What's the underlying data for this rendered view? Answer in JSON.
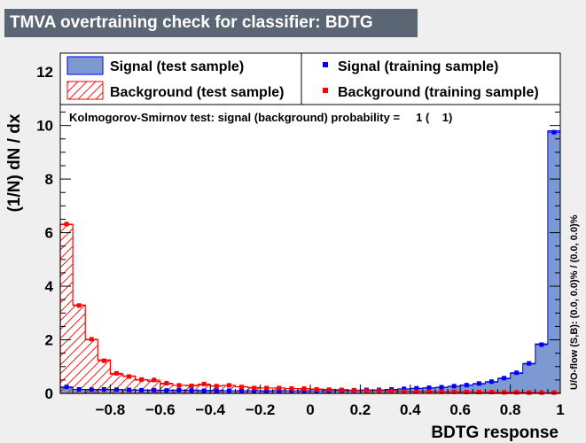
{
  "title": "TMVA overtraining check for classifier: BDTG",
  "colors": {
    "signal_fill": "#7d99d1",
    "signal_line": "#0000ee",
    "background_line": "#ff0000",
    "title_bg": "#5b6675"
  },
  "chart_data": {
    "type": "histogram",
    "xlabel": "BDTG response",
    "ylabel": "(1/N) dN / dx",
    "xlim": [
      -1,
      1
    ],
    "ylim": [
      0,
      12.7
    ],
    "x_ticks": [
      "−0.8",
      "−0.6",
      "−0.4",
      "−0.2",
      "0",
      "0.2",
      "0.4",
      "0.6",
      "0.8",
      "1"
    ],
    "x_tick_values": [
      -0.8,
      -0.6,
      -0.4,
      -0.2,
      0,
      0.2,
      0.4,
      0.6,
      0.8,
      1
    ],
    "y_ticks": [
      "0",
      "2",
      "4",
      "6",
      "8",
      "10",
      "12"
    ],
    "y_tick_values": [
      0,
      2,
      4,
      6,
      8,
      10,
      12
    ],
    "bins": 40,
    "legend": [
      {
        "label": "Signal (test sample)",
        "style": "fill"
      },
      {
        "label": "Signal (training sample)",
        "style": "marker"
      },
      {
        "label": "Background (test sample)",
        "style": "hatch"
      },
      {
        "label": "Background (training sample)",
        "style": "marker"
      }
    ],
    "ks_text": "Kolmogorov-Smirnov test: signal (background) probability =     1 (    1)",
    "uo_text": "U/O-flow (S,B): (0.0, 0.0)% / (0.0, 0.0)%",
    "series": [
      {
        "name": "Signal (test sample)",
        "values": [
          0.22,
          0.15,
          0.15,
          0.14,
          0.15,
          0.13,
          0.13,
          0.12,
          0.12,
          0.12,
          0.11,
          0.11,
          0.11,
          0.1,
          0.1,
          0.1,
          0.1,
          0.1,
          0.1,
          0.1,
          0.1,
          0.1,
          0.1,
          0.1,
          0.12,
          0.12,
          0.14,
          0.16,
          0.18,
          0.2,
          0.22,
          0.26,
          0.3,
          0.35,
          0.42,
          0.55,
          0.75,
          1.1,
          1.85,
          9.8
        ]
      },
      {
        "name": "Signal (training sample)",
        "values": [
          0.24,
          0.15,
          0.14,
          0.15,
          0.14,
          0.13,
          0.12,
          0.12,
          0.11,
          0.12,
          0.11,
          0.1,
          0.1,
          0.1,
          0.1,
          0.1,
          0.09,
          0.1,
          0.1,
          0.1,
          0.1,
          0.1,
          0.11,
          0.11,
          0.13,
          0.13,
          0.15,
          0.17,
          0.19,
          0.21,
          0.23,
          0.27,
          0.31,
          0.37,
          0.44,
          0.57,
          0.77,
          1.12,
          1.82,
          9.75
        ]
      },
      {
        "name": "Background (test sample)",
        "values": [
          6.3,
          3.3,
          2.0,
          1.25,
          0.72,
          0.65,
          0.5,
          0.45,
          0.35,
          0.3,
          0.3,
          0.32,
          0.28,
          0.3,
          0.25,
          0.22,
          0.2,
          0.2,
          0.18,
          0.17,
          0.16,
          0.15,
          0.14,
          0.12,
          0.1,
          0.1,
          0.1,
          0.08,
          0.08,
          0.07,
          0.06,
          0.06,
          0.06,
          0.05,
          0.05,
          0.04,
          0.04,
          0.04,
          0.03,
          0.03
        ]
      },
      {
        "name": "Background (training sample)",
        "values": [
          6.32,
          3.28,
          2.02,
          1.22,
          0.75,
          0.63,
          0.52,
          0.5,
          0.38,
          0.3,
          0.28,
          0.35,
          0.27,
          0.3,
          0.24,
          0.2,
          0.2,
          0.2,
          0.18,
          0.18,
          0.15,
          0.14,
          0.13,
          0.12,
          0.1,
          0.1,
          0.09,
          0.08,
          0.07,
          0.07,
          0.06,
          0.06,
          0.05,
          0.05,
          0.05,
          0.04,
          0.04,
          0.03,
          0.03,
          0.03
        ]
      }
    ]
  }
}
